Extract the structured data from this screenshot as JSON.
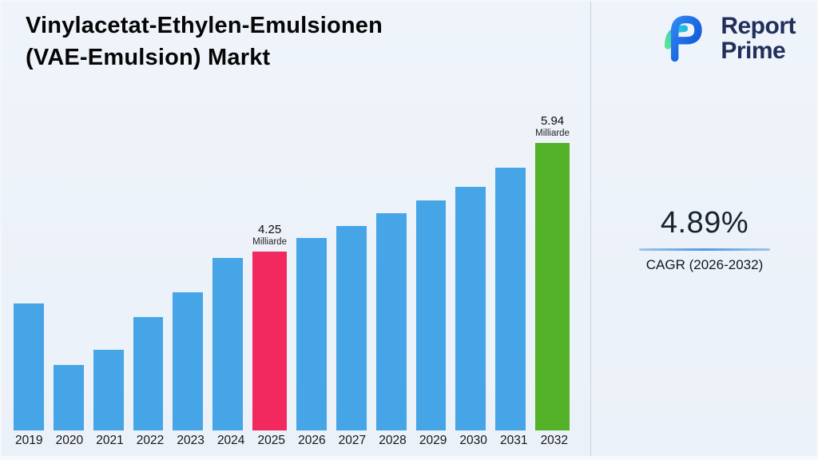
{
  "page": {
    "title_line1": "Vinylacetat-Ethylen-Emulsionen",
    "title_line2": "(VAE-Emulsion) Markt"
  },
  "logo": {
    "line1": "Report",
    "line2": "Prime"
  },
  "cagr": {
    "value": "4.89%",
    "label": "CAGR (2026-2032)"
  },
  "chart_data": {
    "type": "bar",
    "title": "Vinylacetat-Ethylen-Emulsionen (VAE-Emulsion) Markt",
    "unit": "Milliarde",
    "categories": [
      "2019",
      "2020",
      "2021",
      "2022",
      "2023",
      "2024",
      "2025",
      "2026",
      "2027",
      "2028",
      "2029",
      "2030",
      "2031",
      "2032"
    ],
    "values": [
      3.44,
      2.48,
      2.72,
      3.23,
      3.61,
      4.15,
      4.25,
      4.46,
      4.65,
      4.85,
      5.05,
      5.25,
      5.55,
      5.94
    ],
    "labeled_points": [
      {
        "category": "2025",
        "value_label": "4.25",
        "unit_label": "Milliarde"
      },
      {
        "category": "2032",
        "value_label": "5.94",
        "unit_label": "Milliarde"
      }
    ],
    "colors": {
      "default": "#45a5e6"
    },
    "highlights": {
      "2025": "#f1295f",
      "2032": "#53b228"
    },
    "ylim": [
      1.46,
      5.94
    ],
    "xlabel": "",
    "ylabel": "",
    "grid": false,
    "legend": false
  }
}
